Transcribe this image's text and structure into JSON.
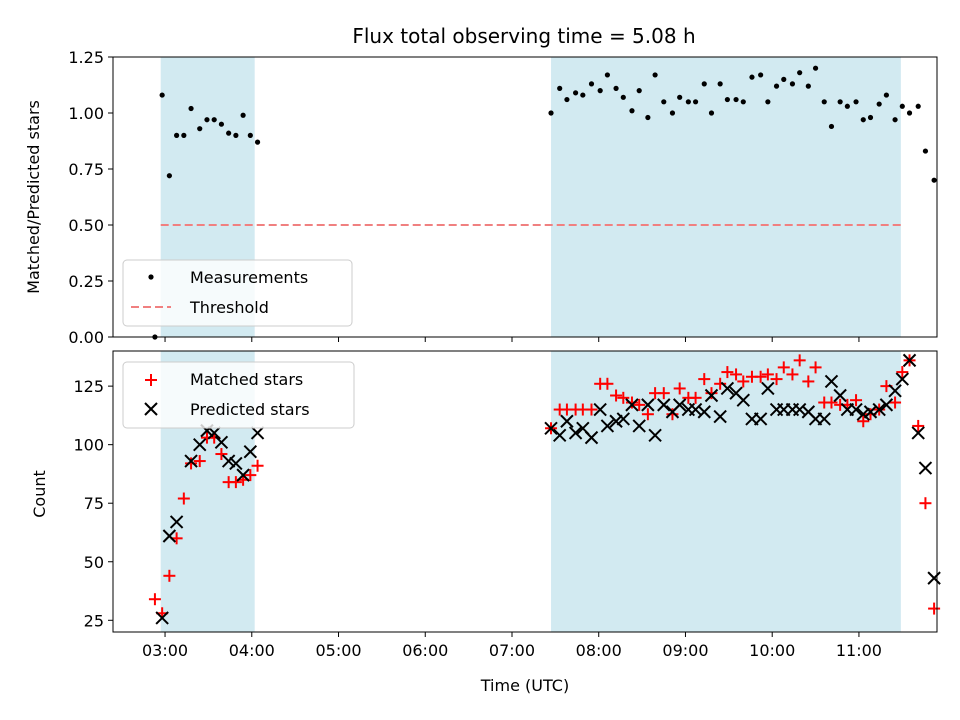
{
  "title": "Flux total observing time = 5.08 h",
  "colors": {
    "band": "#add8e6",
    "measurement": "#000000",
    "threshold": "#f08080",
    "matched": "#ff0000",
    "predicted": "#000000"
  },
  "chart_data": [
    {
      "type": "scatter",
      "ylabel": "Matched/Predicted stars",
      "xlim": [
        "02:24",
        "11:54"
      ],
      "ylim": [
        0,
        1.25
      ],
      "yticks": [
        "0.00",
        "0.25",
        "0.50",
        "0.75",
        "1.00",
        "1.25"
      ],
      "ytick_values": [
        0,
        0.25,
        0.5,
        0.75,
        1.0,
        1.25
      ],
      "legend": {
        "placement": "lower-left",
        "entries": [
          "Measurements",
          "Threshold"
        ]
      },
      "shaded_bands": [
        [
          "02:57",
          "04:02"
        ],
        [
          "07:27",
          "11:29"
        ]
      ],
      "threshold": {
        "name": "Threshold",
        "value": 0.5,
        "x": [
          "02:57",
          "11:29"
        ]
      },
      "series": [
        {
          "name": "Measurements",
          "points": [
            [
              "02:53",
              0.0
            ],
            [
              "02:58",
              1.08
            ],
            [
              "03:03",
              0.72
            ],
            [
              "03:08",
              0.9
            ],
            [
              "03:13",
              0.9
            ],
            [
              "03:18",
              1.02
            ],
            [
              "03:24",
              0.93
            ],
            [
              "03:29",
              0.97
            ],
            [
              "03:34",
              0.97
            ],
            [
              "03:39",
              0.95
            ],
            [
              "03:44",
              0.91
            ],
            [
              "03:49",
              0.9
            ],
            [
              "03:54",
              0.99
            ],
            [
              "03:59",
              0.9
            ],
            [
              "04:04",
              0.87
            ],
            [
              "07:27",
              1.0
            ],
            [
              "07:33",
              1.11
            ],
            [
              "07:38",
              1.06
            ],
            [
              "07:44",
              1.09
            ],
            [
              "07:49",
              1.08
            ],
            [
              "07:55",
              1.13
            ],
            [
              "08:01",
              1.1
            ],
            [
              "08:06",
              1.17
            ],
            [
              "08:12",
              1.11
            ],
            [
              "08:17",
              1.07
            ],
            [
              "08:23",
              1.01
            ],
            [
              "08:28",
              1.1
            ],
            [
              "08:34",
              0.98
            ],
            [
              "08:39",
              1.17
            ],
            [
              "08:45",
              1.05
            ],
            [
              "08:51",
              1.0
            ],
            [
              "08:56",
              1.07
            ],
            [
              "09:02",
              1.05
            ],
            [
              "09:07",
              1.05
            ],
            [
              "09:13",
              1.13
            ],
            [
              "09:18",
              1.0
            ],
            [
              "09:24",
              1.13
            ],
            [
              "09:29",
              1.06
            ],
            [
              "09:35",
              1.06
            ],
            [
              "09:40",
              1.05
            ],
            [
              "09:46",
              1.16
            ],
            [
              "09:52",
              1.17
            ],
            [
              "09:57",
              1.05
            ],
            [
              "10:03",
              1.12
            ],
            [
              "10:08",
              1.15
            ],
            [
              "10:14",
              1.13
            ],
            [
              "10:19",
              1.18
            ],
            [
              "10:25",
              1.12
            ],
            [
              "10:30",
              1.2
            ],
            [
              "10:36",
              1.05
            ],
            [
              "10:41",
              0.94
            ],
            [
              "10:47",
              1.05
            ],
            [
              "10:52",
              1.03
            ],
            [
              "10:58",
              1.05
            ],
            [
              "11:03",
              0.97
            ],
            [
              "11:08",
              0.98
            ],
            [
              "11:14",
              1.04
            ],
            [
              "11:19",
              1.08
            ],
            [
              "11:25",
              0.97
            ],
            [
              "11:30",
              1.03
            ],
            [
              "11:35",
              1.0
            ],
            [
              "11:41",
              1.03
            ],
            [
              "11:46",
              0.83
            ],
            [
              "11:52",
              0.7
            ]
          ]
        }
      ]
    },
    {
      "type": "scatter",
      "xlabel": "Time (UTC)",
      "ylabel": "Count",
      "xlim": [
        "02:24",
        "11:54"
      ],
      "ylim": [
        20,
        140
      ],
      "yticks": [
        "25",
        "50",
        "75",
        "100",
        "125"
      ],
      "ytick_values": [
        25,
        50,
        75,
        100,
        125
      ],
      "xticks": [
        "03:00",
        "04:00",
        "05:00",
        "06:00",
        "07:00",
        "08:00",
        "09:00",
        "10:00",
        "11:00"
      ],
      "legend": {
        "placement": "upper-left",
        "entries": [
          "Matched stars",
          "Predicted stars"
        ]
      },
      "shaded_bands": [
        [
          "02:57",
          "04:02"
        ],
        [
          "07:27",
          "11:29"
        ]
      ],
      "series": [
        {
          "name": "Matched stars",
          "points": [
            [
              "02:53",
              34
            ],
            [
              "02:58",
              28
            ],
            [
              "03:03",
              44
            ],
            [
              "03:08",
              60
            ],
            [
              "03:13",
              77
            ],
            [
              "03:18",
              92
            ],
            [
              "03:24",
              93
            ],
            [
              "03:29",
              103
            ],
            [
              "03:34",
              103
            ],
            [
              "03:39",
              96
            ],
            [
              "03:44",
              84
            ],
            [
              "03:49",
              84
            ],
            [
              "03:54",
              85
            ],
            [
              "03:59",
              87
            ],
            [
              "04:04",
              91
            ],
            [
              "07:27",
              107
            ],
            [
              "07:33",
              115
            ],
            [
              "07:38",
              115
            ],
            [
              "07:44",
              115
            ],
            [
              "07:49",
              115
            ],
            [
              "07:55",
              115
            ],
            [
              "08:01",
              126
            ],
            [
              "08:06",
              126
            ],
            [
              "08:12",
              121
            ],
            [
              "08:17",
              120
            ],
            [
              "08:23",
              118
            ],
            [
              "08:28",
              117
            ],
            [
              "08:34",
              113
            ],
            [
              "08:39",
              122
            ],
            [
              "08:45",
              122
            ],
            [
              "08:51",
              113
            ],
            [
              "08:56",
              124
            ],
            [
              "09:02",
              120
            ],
            [
              "09:07",
              120
            ],
            [
              "09:13",
              128
            ],
            [
              "09:18",
              122
            ],
            [
              "09:24",
              126
            ],
            [
              "09:29",
              131
            ],
            [
              "09:35",
              130
            ],
            [
              "09:40",
              127
            ],
            [
              "09:46",
              129
            ],
            [
              "09:52",
              129
            ],
            [
              "09:57",
              130
            ],
            [
              "10:03",
              128
            ],
            [
              "10:08",
              133
            ],
            [
              "10:14",
              130
            ],
            [
              "10:19",
              136
            ],
            [
              "10:25",
              127
            ],
            [
              "10:30",
              133
            ],
            [
              "10:36",
              118
            ],
            [
              "10:41",
              118
            ],
            [
              "10:47",
              117
            ],
            [
              "10:52",
              117
            ],
            [
              "10:58",
              119
            ],
            [
              "11:03",
              110
            ],
            [
              "11:08",
              113
            ],
            [
              "11:14",
              115
            ],
            [
              "11:19",
              125
            ],
            [
              "11:25",
              118
            ],
            [
              "11:30",
              131
            ],
            [
              "11:35",
              136
            ],
            [
              "11:41",
              108
            ],
            [
              "11:46",
              75
            ],
            [
              "11:52",
              30
            ]
          ]
        },
        {
          "name": "Predicted stars",
          "points": [
            [
              "02:58",
              26
            ],
            [
              "03:03",
              61
            ],
            [
              "03:08",
              67
            ],
            [
              "03:18",
              93
            ],
            [
              "03:24",
              100
            ],
            [
              "03:29",
              106
            ],
            [
              "03:34",
              105
            ],
            [
              "03:39",
              101
            ],
            [
              "03:44",
              93
            ],
            [
              "03:49",
              92
            ],
            [
              "03:54",
              87
            ],
            [
              "03:59",
              97
            ],
            [
              "04:04",
              105
            ],
            [
              "07:27",
              107
            ],
            [
              "07:33",
              104
            ],
            [
              "07:38",
              110
            ],
            [
              "07:44",
              105
            ],
            [
              "07:49",
              107
            ],
            [
              "07:55",
              103
            ],
            [
              "08:01",
              115
            ],
            [
              "08:06",
              108
            ],
            [
              "08:12",
              110
            ],
            [
              "08:17",
              111
            ],
            [
              "08:23",
              117
            ],
            [
              "08:28",
              108
            ],
            [
              "08:34",
              117
            ],
            [
              "08:39",
              104
            ],
            [
              "08:45",
              117
            ],
            [
              "08:51",
              114
            ],
            [
              "08:56",
              117
            ],
            [
              "09:02",
              115
            ],
            [
              "09:07",
              115
            ],
            [
              "09:13",
              114
            ],
            [
              "09:18",
              121
            ],
            [
              "09:24",
              112
            ],
            [
              "09:29",
              124
            ],
            [
              "09:35",
              122
            ],
            [
              "09:40",
              119
            ],
            [
              "09:46",
              111
            ],
            [
              "09:52",
              111
            ],
            [
              "09:57",
              124
            ],
            [
              "10:03",
              115
            ],
            [
              "10:08",
              115
            ],
            [
              "10:14",
              115
            ],
            [
              "10:19",
              115
            ],
            [
              "10:25",
              114
            ],
            [
              "10:30",
              111
            ],
            [
              "10:36",
              111
            ],
            [
              "10:41",
              127
            ],
            [
              "10:47",
              121
            ],
            [
              "10:52",
              115
            ],
            [
              "10:58",
              115
            ],
            [
              "11:03",
              113
            ],
            [
              "11:08",
              114
            ],
            [
              "11:14",
              115
            ],
            [
              "11:19",
              117
            ],
            [
              "11:25",
              123
            ],
            [
              "11:30",
              128
            ],
            [
              "11:35",
              136
            ],
            [
              "11:41",
              105
            ],
            [
              "11:46",
              90
            ],
            [
              "11:52",
              43
            ]
          ]
        }
      ]
    }
  ]
}
